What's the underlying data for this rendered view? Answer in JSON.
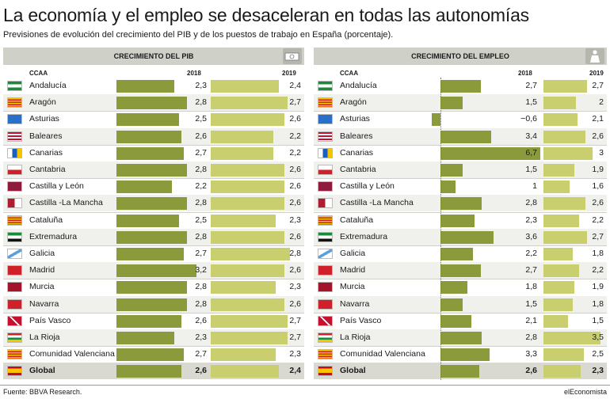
{
  "title": "La economía y el empleo se desaceleran en todas las autonomías",
  "subtitle": "Previsiones de evolución del crecimiento del PIB y de los puestos de trabajo en España (porcentaje).",
  "source": "Fuente: BBVA Research.",
  "brand": "elEconomista",
  "colors": {
    "bar_2018": "#8b9a3b",
    "bar_2019": "#c9cf6e",
    "header_bg": "#cfd0c8"
  },
  "chart_data": [
    {
      "type": "bar",
      "title": "CRECIMIENTO DEL PIB",
      "icon": "money-icon",
      "col_region": "CCAA",
      "col_a": "2018",
      "col_b": "2019",
      "categories": [
        "Andalucía",
        "Aragón",
        "Asturias",
        "Baleares",
        "Canarias",
        "Cantabria",
        "Castilla y León",
        "Castilla -La Mancha",
        "Cataluña",
        "Extremadura",
        "Galicia",
        "Madrid",
        "Murcia",
        "Navarra",
        "País Vasco",
        "La Rioja",
        "Comunidad Valenciana",
        "Global"
      ],
      "labels_a": [
        "2,3",
        "2,8",
        "2,5",
        "2,6",
        "2,7",
        "2,8",
        "2,2",
        "2,8",
        "2,5",
        "2,8",
        "2,7",
        "3,2",
        "2,8",
        "2,8",
        "2,6",
        "2,3",
        "2,7",
        "2,6"
      ],
      "labels_b": [
        "2,4",
        "2,7",
        "2,6",
        "2,2",
        "2,2",
        "2,6",
        "2,6",
        "2,6",
        "2,3",
        "2,6",
        "2,8",
        "2,6",
        "2,3",
        "2,6",
        "2,7",
        "2,7",
        "2,3",
        "2,4"
      ],
      "series": [
        {
          "name": "2018",
          "values": [
            2.3,
            2.8,
            2.5,
            2.6,
            2.7,
            2.8,
            2.2,
            2.8,
            2.5,
            2.8,
            2.7,
            3.2,
            2.8,
            2.8,
            2.6,
            2.3,
            2.7,
            2.6
          ]
        },
        {
          "name": "2019",
          "values": [
            2.4,
            2.7,
            2.6,
            2.2,
            2.2,
            2.6,
            2.6,
            2.6,
            2.3,
            2.6,
            2.8,
            2.6,
            2.3,
            2.6,
            2.7,
            2.7,
            2.3,
            2.4
          ]
        }
      ]
    },
    {
      "type": "bar",
      "title": "CRECIMIENTO DEL EMPLEO",
      "icon": "worker-icon",
      "col_region": "CCAA",
      "col_a": "2018",
      "col_b": "2019",
      "categories": [
        "Andalucía",
        "Aragón",
        "Asturias",
        "Baleares",
        "Canarias",
        "Cantabria",
        "Castilla y León",
        "Castilla -La Mancha",
        "Cataluña",
        "Extremadura",
        "Galicia",
        "Madrid",
        "Murcia",
        "Navarra",
        "País Vasco",
        "La Rioja",
        "Comunidad Valenciana",
        "Global"
      ],
      "labels_a": [
        "2,7",
        "1,5",
        "−0,6",
        "3,4",
        "6,7",
        "1,5",
        "1",
        "2,8",
        "2,3",
        "3,6",
        "2,2",
        "2,7",
        "1,8",
        "1,5",
        "2,1",
        "2,8",
        "3,3",
        "2,6"
      ],
      "labels_b": [
        "2,7",
        "2",
        "2,1",
        "2,6",
        "3",
        "1,9",
        "1,6",
        "2,6",
        "2,2",
        "2,7",
        "1,8",
        "2,2",
        "1,9",
        "1,8",
        "1,5",
        "3,5",
        "2,5",
        "2,3"
      ],
      "series": [
        {
          "name": "2018",
          "values": [
            2.7,
            1.5,
            -0.6,
            3.4,
            6.7,
            1.5,
            1.0,
            2.8,
            2.3,
            3.6,
            2.2,
            2.7,
            1.8,
            1.5,
            2.1,
            2.8,
            3.3,
            2.6
          ]
        },
        {
          "name": "2019",
          "values": [
            2.7,
            2.0,
            2.1,
            2.6,
            3.0,
            1.9,
            1.6,
            2.6,
            2.2,
            2.7,
            1.8,
            2.2,
            1.9,
            1.8,
            1.5,
            3.5,
            2.5,
            2.3
          ]
        }
      ]
    }
  ]
}
